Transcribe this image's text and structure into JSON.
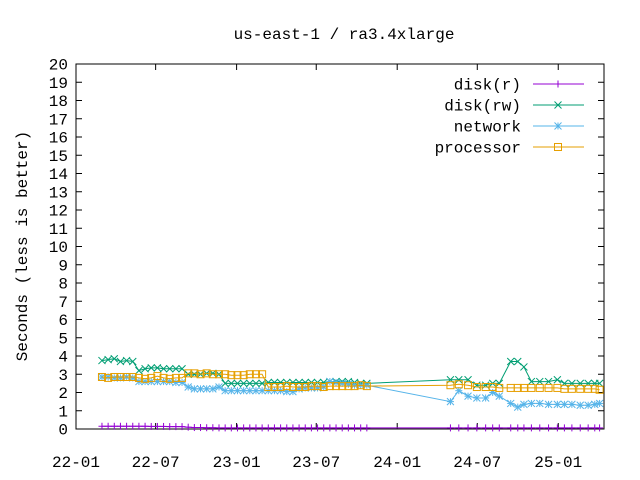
{
  "chart_data": {
    "type": "line",
    "title": "us-east-1 / ra3.4xlarge",
    "xlabel": "",
    "ylabel": "Seconds (less is better)",
    "ylim": [
      0,
      20
    ],
    "yticks": [
      "0",
      "1",
      "2",
      "3",
      "4",
      "5",
      "6",
      "7",
      "8",
      "9",
      "10",
      "11",
      "12",
      "13",
      "14",
      "15",
      "16",
      "17",
      "18",
      "19",
      "20"
    ],
    "xlim": [
      "2022-01-01",
      "2025-04-15"
    ],
    "xticks": [
      {
        "date": "2022-01-01",
        "label": "22-01"
      },
      {
        "date": "2022-07-01",
        "label": "22-07"
      },
      {
        "date": "2023-01-01",
        "label": "23-01"
      },
      {
        "date": "2023-07-01",
        "label": "23-07"
      },
      {
        "date": "2024-01-01",
        "label": "24-01"
      },
      {
        "date": "2024-07-01",
        "label": "24-07"
      },
      {
        "date": "2025-01-01",
        "label": "25-01"
      }
    ],
    "grid": false,
    "legend_position": "top-right",
    "series": [
      {
        "name": "disk(r)",
        "color": "#9400d3",
        "marker": "plus",
        "points": [
          [
            "2022-03-01",
            0.15
          ],
          [
            "2022-03-15",
            0.15
          ],
          [
            "2022-03-29",
            0.15
          ],
          [
            "2022-04-12",
            0.15
          ],
          [
            "2022-04-26",
            0.15
          ],
          [
            "2022-05-10",
            0.15
          ],
          [
            "2022-05-24",
            0.15
          ],
          [
            "2022-06-07",
            0.15
          ],
          [
            "2022-06-21",
            0.14
          ],
          [
            "2022-07-05",
            0.14
          ],
          [
            "2022-07-19",
            0.14
          ],
          [
            "2022-08-02",
            0.13
          ],
          [
            "2022-08-16",
            0.13
          ],
          [
            "2022-08-30",
            0.13
          ],
          [
            "2022-09-13",
            0.1
          ],
          [
            "2022-09-27",
            0.08
          ],
          [
            "2022-10-11",
            0.08
          ],
          [
            "2022-10-25",
            0.07
          ],
          [
            "2022-11-08",
            0.07
          ],
          [
            "2022-11-22",
            0.06
          ],
          [
            "2022-12-06",
            0.06
          ],
          [
            "2022-12-20",
            0.06
          ],
          [
            "2023-01-03",
            0.06
          ],
          [
            "2023-01-17",
            0.06
          ],
          [
            "2023-01-31",
            0.06
          ],
          [
            "2023-02-14",
            0.06
          ],
          [
            "2023-02-28",
            0.06
          ],
          [
            "2023-03-14",
            0.06
          ],
          [
            "2023-03-28",
            0.06
          ],
          [
            "2023-04-11",
            0.06
          ],
          [
            "2023-04-25",
            0.06
          ],
          [
            "2023-05-09",
            0.06
          ],
          [
            "2023-05-23",
            0.06
          ],
          [
            "2023-06-06",
            0.06
          ],
          [
            "2023-06-20",
            0.06
          ],
          [
            "2023-07-04",
            0.06
          ],
          [
            "2023-07-18",
            0.06
          ],
          [
            "2023-08-01",
            0.06
          ],
          [
            "2023-08-15",
            0.06
          ],
          [
            "2023-08-29",
            0.06
          ],
          [
            "2023-09-12",
            0.06
          ],
          [
            "2023-09-26",
            0.06
          ],
          [
            "2023-10-10",
            0.06
          ],
          [
            "2023-10-24",
            0.06
          ],
          [
            "2024-05-01",
            0.06
          ],
          [
            "2024-05-20",
            0.06
          ],
          [
            "2024-06-10",
            0.06
          ],
          [
            "2024-06-30",
            0.06
          ],
          [
            "2024-07-20",
            0.06
          ],
          [
            "2024-08-05",
            0.06
          ],
          [
            "2024-08-20",
            0.06
          ],
          [
            "2024-09-15",
            0.06
          ],
          [
            "2024-10-01",
            0.06
          ],
          [
            "2024-10-15",
            0.06
          ],
          [
            "2024-11-01",
            0.06
          ],
          [
            "2024-11-20",
            0.06
          ],
          [
            "2024-12-10",
            0.06
          ],
          [
            "2024-12-30",
            0.06
          ],
          [
            "2025-01-15",
            0.06
          ],
          [
            "2025-02-01",
            0.06
          ],
          [
            "2025-02-20",
            0.06
          ],
          [
            "2025-03-10",
            0.06
          ],
          [
            "2025-03-25",
            0.06
          ],
          [
            "2025-04-05",
            0.06
          ]
        ]
      },
      {
        "name": "disk(rw)",
        "color": "#009e73",
        "marker": "cross",
        "points": [
          [
            "2022-03-01",
            3.75
          ],
          [
            "2022-03-15",
            3.8
          ],
          [
            "2022-03-29",
            3.85
          ],
          [
            "2022-04-12",
            3.7
          ],
          [
            "2022-04-26",
            3.75
          ],
          [
            "2022-05-10",
            3.7
          ],
          [
            "2022-05-24",
            3.2
          ],
          [
            "2022-06-07",
            3.3
          ],
          [
            "2022-06-21",
            3.35
          ],
          [
            "2022-07-05",
            3.35
          ],
          [
            "2022-07-19",
            3.3
          ],
          [
            "2022-08-02",
            3.3
          ],
          [
            "2022-08-16",
            3.3
          ],
          [
            "2022-08-30",
            3.3
          ],
          [
            "2022-09-13",
            3.0
          ],
          [
            "2022-09-27",
            3.0
          ],
          [
            "2022-10-11",
            3.0
          ],
          [
            "2022-10-25",
            3.05
          ],
          [
            "2022-11-08",
            3.05
          ],
          [
            "2022-11-22",
            3.0
          ],
          [
            "2022-12-06",
            2.5
          ],
          [
            "2022-12-20",
            2.5
          ],
          [
            "2023-01-03",
            2.5
          ],
          [
            "2023-01-17",
            2.5
          ],
          [
            "2023-01-31",
            2.5
          ],
          [
            "2023-02-14",
            2.5
          ],
          [
            "2023-02-28",
            2.5
          ],
          [
            "2023-03-14",
            2.55
          ],
          [
            "2023-03-28",
            2.55
          ],
          [
            "2023-04-11",
            2.55
          ],
          [
            "2023-04-25",
            2.55
          ],
          [
            "2023-05-09",
            2.55
          ],
          [
            "2023-05-23",
            2.55
          ],
          [
            "2023-06-06",
            2.55
          ],
          [
            "2023-06-20",
            2.55
          ],
          [
            "2023-07-04",
            2.55
          ],
          [
            "2023-07-18",
            2.55
          ],
          [
            "2023-08-01",
            2.6
          ],
          [
            "2023-08-15",
            2.6
          ],
          [
            "2023-08-29",
            2.6
          ],
          [
            "2023-09-12",
            2.6
          ],
          [
            "2023-09-26",
            2.55
          ],
          [
            "2023-10-10",
            2.5
          ],
          [
            "2023-10-24",
            2.5
          ],
          [
            "2024-05-01",
            2.7
          ],
          [
            "2024-05-20",
            2.7
          ],
          [
            "2024-06-10",
            2.7
          ],
          [
            "2024-06-30",
            2.4
          ],
          [
            "2024-07-20",
            2.4
          ],
          [
            "2024-08-05",
            2.5
          ],
          [
            "2024-08-20",
            2.5
          ],
          [
            "2024-09-15",
            3.7
          ],
          [
            "2024-10-01",
            3.7
          ],
          [
            "2024-10-15",
            3.4
          ],
          [
            "2024-11-01",
            2.6
          ],
          [
            "2024-11-20",
            2.6
          ],
          [
            "2024-12-10",
            2.6
          ],
          [
            "2024-12-30",
            2.7
          ],
          [
            "2025-01-15",
            2.5
          ],
          [
            "2025-02-01",
            2.5
          ],
          [
            "2025-02-20",
            2.5
          ],
          [
            "2025-03-10",
            2.5
          ],
          [
            "2025-03-25",
            2.5
          ],
          [
            "2025-04-05",
            2.5
          ]
        ]
      },
      {
        "name": "network",
        "color": "#56b4e9",
        "marker": "star",
        "points": [
          [
            "2022-03-01",
            2.85
          ],
          [
            "2022-03-15",
            2.85
          ],
          [
            "2022-03-29",
            2.8
          ],
          [
            "2022-04-12",
            2.8
          ],
          [
            "2022-04-26",
            2.85
          ],
          [
            "2022-05-10",
            2.8
          ],
          [
            "2022-05-24",
            2.6
          ],
          [
            "2022-06-07",
            2.6
          ],
          [
            "2022-06-21",
            2.6
          ],
          [
            "2022-07-05",
            2.6
          ],
          [
            "2022-07-19",
            2.6
          ],
          [
            "2022-08-02",
            2.6
          ],
          [
            "2022-08-16",
            2.55
          ],
          [
            "2022-08-30",
            2.55
          ],
          [
            "2022-09-13",
            2.3
          ],
          [
            "2022-09-27",
            2.2
          ],
          [
            "2022-10-11",
            2.2
          ],
          [
            "2022-10-25",
            2.2
          ],
          [
            "2022-11-08",
            2.2
          ],
          [
            "2022-11-22",
            2.3
          ],
          [
            "2022-12-06",
            2.1
          ],
          [
            "2022-12-20",
            2.1
          ],
          [
            "2023-01-03",
            2.1
          ],
          [
            "2023-01-17",
            2.1
          ],
          [
            "2023-01-31",
            2.1
          ],
          [
            "2023-02-14",
            2.1
          ],
          [
            "2023-02-28",
            2.1
          ],
          [
            "2023-03-14",
            2.1
          ],
          [
            "2023-03-28",
            2.1
          ],
          [
            "2023-04-11",
            2.1
          ],
          [
            "2023-04-25",
            2.05
          ],
          [
            "2023-05-09",
            2.05
          ],
          [
            "2023-05-23",
            2.2
          ],
          [
            "2023-06-06",
            2.25
          ],
          [
            "2023-06-20",
            2.25
          ],
          [
            "2023-07-04",
            2.25
          ],
          [
            "2023-07-18",
            2.3
          ],
          [
            "2023-08-01",
            2.6
          ],
          [
            "2023-08-15",
            2.55
          ],
          [
            "2023-08-29",
            2.5
          ],
          [
            "2023-09-12",
            2.45
          ],
          [
            "2023-09-26",
            2.4
          ],
          [
            "2023-10-10",
            2.4
          ],
          [
            "2023-10-24",
            2.4
          ],
          [
            "2024-05-01",
            1.5
          ],
          [
            "2024-05-20",
            2.1
          ],
          [
            "2024-06-10",
            1.8
          ],
          [
            "2024-06-30",
            1.7
          ],
          [
            "2024-07-20",
            1.7
          ],
          [
            "2024-08-05",
            2.0
          ],
          [
            "2024-08-20",
            1.8
          ],
          [
            "2024-09-15",
            1.4
          ],
          [
            "2024-10-01",
            1.2
          ],
          [
            "2024-10-15",
            1.35
          ],
          [
            "2024-11-01",
            1.4
          ],
          [
            "2024-11-20",
            1.4
          ],
          [
            "2024-12-10",
            1.35
          ],
          [
            "2024-12-30",
            1.35
          ],
          [
            "2025-01-15",
            1.35
          ],
          [
            "2025-02-01",
            1.35
          ],
          [
            "2025-02-20",
            1.3
          ],
          [
            "2025-03-10",
            1.3
          ],
          [
            "2025-03-25",
            1.35
          ],
          [
            "2025-04-05",
            1.4
          ]
        ]
      },
      {
        "name": "processor",
        "color": "#e69f00",
        "marker": "square",
        "points": [
          [
            "2022-03-01",
            2.85
          ],
          [
            "2022-03-15",
            2.8
          ],
          [
            "2022-03-29",
            2.85
          ],
          [
            "2022-04-12",
            2.85
          ],
          [
            "2022-04-26",
            2.85
          ],
          [
            "2022-05-10",
            2.85
          ],
          [
            "2022-05-24",
            2.8
          ],
          [
            "2022-06-07",
            2.75
          ],
          [
            "2022-06-21",
            2.8
          ],
          [
            "2022-07-05",
            2.9
          ],
          [
            "2022-07-19",
            2.8
          ],
          [
            "2022-08-02",
            2.75
          ],
          [
            "2022-08-16",
            2.8
          ],
          [
            "2022-08-30",
            2.8
          ],
          [
            "2022-09-13",
            3.05
          ],
          [
            "2022-09-27",
            3.05
          ],
          [
            "2022-10-11",
            3.0
          ],
          [
            "2022-10-25",
            3.05
          ],
          [
            "2022-11-08",
            3.0
          ],
          [
            "2022-11-22",
            3.0
          ],
          [
            "2022-12-06",
            3.0
          ],
          [
            "2022-12-20",
            2.95
          ],
          [
            "2023-01-03",
            2.95
          ],
          [
            "2023-01-17",
            2.95
          ],
          [
            "2023-01-31",
            3.0
          ],
          [
            "2023-02-14",
            3.0
          ],
          [
            "2023-02-28",
            3.0
          ],
          [
            "2023-03-14",
            2.3
          ],
          [
            "2023-03-28",
            2.3
          ],
          [
            "2023-04-11",
            2.3
          ],
          [
            "2023-04-25",
            2.35
          ],
          [
            "2023-05-09",
            2.3
          ],
          [
            "2023-05-23",
            2.3
          ],
          [
            "2023-06-06",
            2.3
          ],
          [
            "2023-06-20",
            2.35
          ],
          [
            "2023-07-04",
            2.35
          ],
          [
            "2023-07-18",
            2.3
          ],
          [
            "2023-08-01",
            2.35
          ],
          [
            "2023-08-15",
            2.35
          ],
          [
            "2023-08-29",
            2.35
          ],
          [
            "2023-09-12",
            2.35
          ],
          [
            "2023-09-26",
            2.35
          ],
          [
            "2023-10-10",
            2.4
          ],
          [
            "2023-10-24",
            2.35
          ],
          [
            "2024-05-01",
            2.4
          ],
          [
            "2024-05-20",
            2.45
          ],
          [
            "2024-06-10",
            2.4
          ],
          [
            "2024-06-30",
            2.3
          ],
          [
            "2024-07-20",
            2.3
          ],
          [
            "2024-08-05",
            2.3
          ],
          [
            "2024-08-20",
            2.25
          ],
          [
            "2024-09-15",
            2.25
          ],
          [
            "2024-10-01",
            2.25
          ],
          [
            "2024-10-15",
            2.25
          ],
          [
            "2024-11-01",
            2.25
          ],
          [
            "2024-11-20",
            2.25
          ],
          [
            "2024-12-10",
            2.25
          ],
          [
            "2024-12-30",
            2.25
          ],
          [
            "2025-01-15",
            2.2
          ],
          [
            "2025-02-01",
            2.2
          ],
          [
            "2025-02-20",
            2.2
          ],
          [
            "2025-03-10",
            2.2
          ],
          [
            "2025-03-25",
            2.2
          ],
          [
            "2025-04-05",
            2.15
          ]
        ]
      }
    ]
  }
}
